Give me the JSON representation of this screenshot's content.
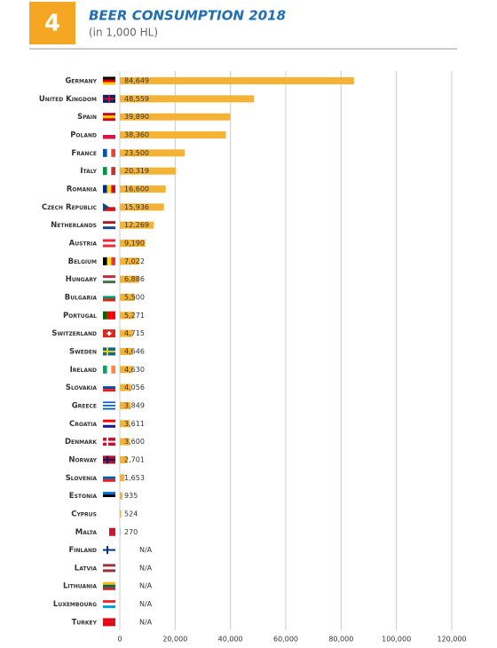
{
  "badge": "4",
  "chart_data": {
    "type": "bar",
    "orientation": "horizontal",
    "title": "BEER CONSUMPTION 2018",
    "subtitle": "(in 1,000 HL)",
    "categories": [
      "Germany",
      "United Kingdom",
      "Spain",
      "Poland",
      "France",
      "Italy",
      "Romania",
      "Czech Republic",
      "Netherlands",
      "Austria",
      "Belgium",
      "Hungary",
      "Bulgaria",
      "Portugal",
      "Switzerland",
      "Sweden",
      "Ireland",
      "Slovakia",
      "Greece",
      "Croatia",
      "Denmark",
      "Norway",
      "Slovenia",
      "Estonia",
      "Cyprus",
      "Malta",
      "Finland",
      "Latvia",
      "Lithuania",
      "Luxembourg",
      "Turkey"
    ],
    "values": [
      84649,
      48559,
      39890,
      38360,
      23500,
      20319,
      16600,
      15936,
      12269,
      9190,
      7022,
      6886,
      5500,
      5271,
      4715,
      4646,
      4630,
      4056,
      3849,
      3611,
      3600,
      2701,
      1653,
      935,
      524,
      270,
      null,
      null,
      null,
      null,
      null
    ],
    "value_labels": [
      "84,649",
      "48,559",
      "39,890",
      "38,360",
      "23,500",
      "20,319",
      "16,600",
      "15,936",
      "12,269",
      "9,190",
      "7,022",
      "6,886",
      "5,500",
      "5,271",
      "4,715",
      "4,646",
      "4,630",
      "4,056",
      "3,849",
      "3,611",
      "3,600",
      "2,701",
      "1,653",
      "935",
      "524",
      "270",
      "N/A",
      "N/A",
      "N/A",
      "N/A",
      "N/A"
    ],
    "color": "#f5b335",
    "xlim": [
      0,
      120000
    ],
    "xticks": [
      0,
      {
        "value": 20000,
        "label": "20,000"
      },
      {
        "value": 40000,
        "label": "40,000"
      },
      {
        "value": 60000,
        "label": "60,000"
      },
      {
        "value": 80000,
        "label": "80,000"
      },
      {
        "value": 100000,
        "label": "100,000"
      },
      {
        "value": 120000,
        "label": "120,000"
      }
    ],
    "grid": true
  }
}
